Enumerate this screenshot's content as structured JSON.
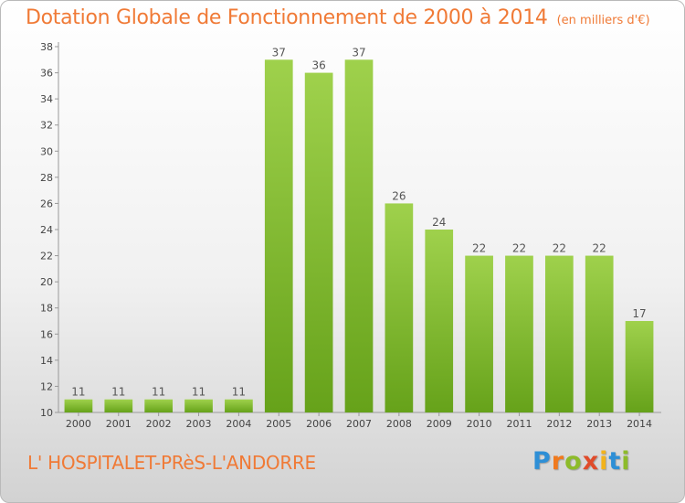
{
  "chart_data": {
    "type": "bar",
    "title": "Dotation Globale de Fonctionnement de 2000 à 2014",
    "subtitle": "(en milliers d'€)",
    "categories": [
      "2000",
      "2001",
      "2002",
      "2003",
      "2004",
      "2005",
      "2006",
      "2007",
      "2008",
      "2009",
      "2010",
      "2011",
      "2012",
      "2013",
      "2014"
    ],
    "values": [
      11,
      11,
      11,
      11,
      11,
      37,
      36,
      37,
      26,
      24,
      22,
      22,
      22,
      22,
      17
    ],
    "ylim": [
      10,
      38
    ],
    "yticks": [
      10,
      12,
      14,
      16,
      18,
      20,
      22,
      24,
      26,
      28,
      30,
      32,
      34,
      36,
      38
    ],
    "xlabel": "",
    "ylabel": "",
    "grid": false,
    "bar_color": "#8cc43c"
  },
  "commune": "L' HOSPITALET-PRèS-L'ANDORRE",
  "brand": {
    "letters": [
      "P",
      "r",
      "o",
      "x",
      "i",
      "t",
      "i"
    ],
    "colors": [
      "#2e8fd6",
      "#f07a1e",
      "#8dbb2a",
      "#e04b2a",
      "#f2b31b",
      "#2e8fd6",
      "#8dbb2a"
    ]
  }
}
